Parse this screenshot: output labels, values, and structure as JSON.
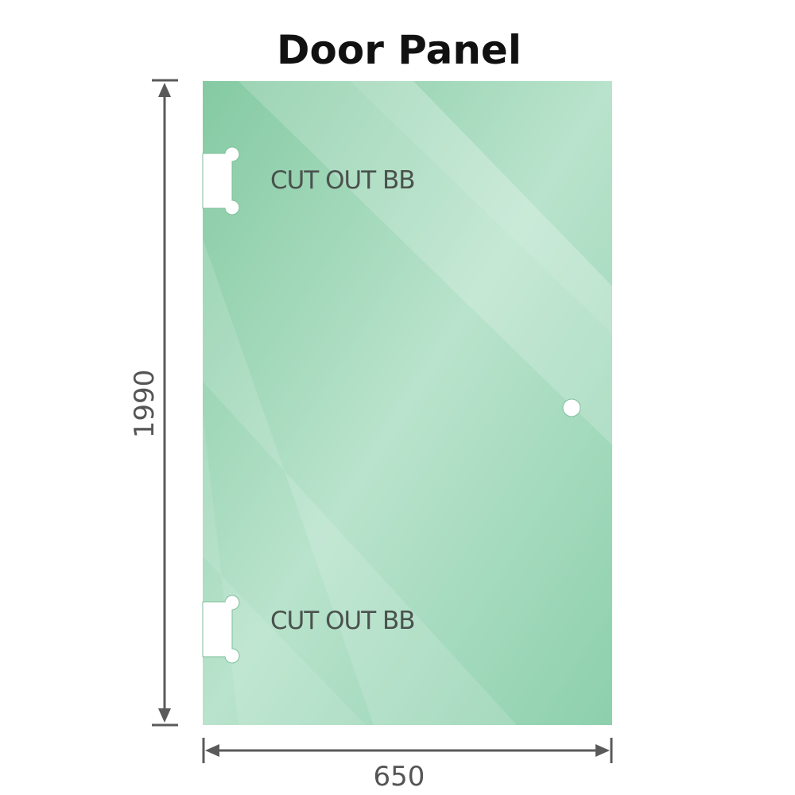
{
  "title": "Door Panel",
  "dimensions": {
    "height": "1990",
    "width": "650"
  },
  "cutouts": [
    {
      "label": "CUT OUT BB"
    },
    {
      "label": "CUT OUT BB"
    }
  ],
  "colors": {
    "glass": "#8fd0ae",
    "glass_light": "#bfe6d1",
    "dimension_line": "#5a5a5a",
    "title": "#111111"
  }
}
